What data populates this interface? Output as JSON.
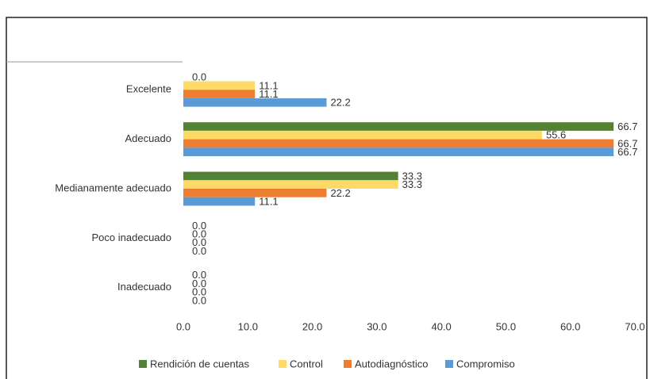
{
  "chart_data": {
    "type": "barh",
    "categories": [
      "Excelente",
      "Adecuado",
      "Medianamente adecuado",
      "Poco inadecuado",
      "Inadecuado"
    ],
    "series": [
      {
        "name": "Rendición de cuentas",
        "color": "#548235",
        "values": [
          0,
          66.7,
          33.3,
          0,
          0
        ],
        "value_labels": [
          "0.0",
          "66.7",
          "33.3",
          "0.0",
          "0.0"
        ]
      },
      {
        "name": "Control",
        "color": "#ffd966",
        "values": [
          11.1,
          55.6,
          33.3,
          0,
          0
        ],
        "value_labels": [
          "11.1",
          "55.6",
          "33.3",
          "0.0",
          "0.0"
        ]
      },
      {
        "name": "Autodiagnóstico",
        "color": "#ed7d31",
        "values": [
          11.1,
          66.7,
          22.2,
          0,
          0
        ],
        "value_labels": [
          "11.1",
          "66.7",
          "22.2",
          "0.0",
          "0.0"
        ]
      },
      {
        "name": "Compromiso",
        "color": "#5b9bd5",
        "values": [
          22.2,
          66.7,
          11.1,
          0,
          0
        ],
        "value_labels": [
          "22.2",
          "66.7",
          "11.1",
          "0.0",
          "0.0"
        ]
      }
    ],
    "xlim": [
      0,
      70
    ],
    "xticks": [
      {
        "value": 0,
        "label": "0.0"
      },
      {
        "value": 10,
        "label": "10.0"
      },
      {
        "value": 20,
        "label": "20.0"
      },
      {
        "value": 30,
        "label": "30.0"
      },
      {
        "value": 40,
        "label": "40.0"
      },
      {
        "value": 50,
        "label": "50.0"
      },
      {
        "value": 60,
        "label": "60.0"
      },
      {
        "value": 70,
        "label": "70.0"
      }
    ],
    "legend": "bottom",
    "grid": false
  }
}
